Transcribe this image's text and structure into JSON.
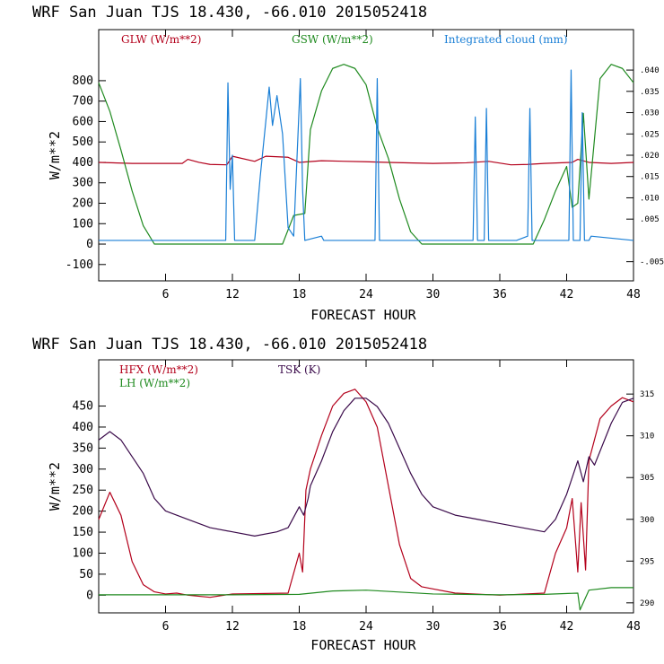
{
  "colors": {
    "glw": "#b3001b",
    "gsw": "#1f8a1f",
    "cloud": "#1a7fd6",
    "hfx": "#b3001b",
    "lh": "#1f8a1f",
    "tsk": "#3a0a4a"
  },
  "chart_data": [
    {
      "type": "line",
      "title": "WRF  San Juan TJS  18.430, -66.010  2015052418",
      "xlabel": "FORECAST HOUR",
      "ylabel": "W/m**2",
      "xlim": [
        0,
        48
      ],
      "ylim": [
        -180,
        1050
      ],
      "x_ticks": [
        12,
        18,
        24,
        30,
        36,
        42,
        48,
        6
      ],
      "y_ticks": [
        -100,
        0,
        100,
        200,
        300,
        400,
        500,
        600,
        700,
        800
      ],
      "y2_ticks": [
        -0.005,
        0.005,
        0.01,
        0.015,
        0.02,
        0.025,
        0.03,
        0.035,
        0.04
      ],
      "y2_tick_labels": [
        "-.005",
        ".005",
        ".010",
        ".015",
        ".020",
        ".025",
        ".030",
        ".035",
        ".040"
      ],
      "y2lim": [
        -0.0095,
        0.0495
      ],
      "series": [
        {
          "name": "GLW (W/m**2)",
          "color": "#b3001b",
          "axis": "left",
          "x": [
            0,
            3,
            7.5,
            8,
            9,
            10,
            11.5,
            12,
            14,
            15,
            17,
            18,
            20,
            24,
            26,
            30,
            33,
            35,
            37,
            38.5,
            40,
            42.5,
            43,
            44,
            46,
            48
          ],
          "y": [
            400,
            395,
            395,
            415,
            400,
            390,
            388,
            430,
            405,
            430,
            425,
            400,
            408,
            403,
            400,
            395,
            398,
            405,
            388,
            390,
            395,
            400,
            415,
            400,
            395,
            400
          ]
        },
        {
          "name": "GSW (W/m**2)",
          "color": "#1f8a1f",
          "axis": "left",
          "x": [
            0,
            1,
            2,
            3,
            4,
            5,
            5.5,
            16.5,
            17.5,
            18.5,
            19,
            20,
            21,
            22,
            23,
            24,
            25,
            26,
            27,
            28,
            29,
            39,
            40,
            41,
            42,
            42.5,
            43,
            43.5,
            44,
            45,
            46,
            47,
            48
          ],
          "y": [
            790,
            650,
            460,
            260,
            90,
            0,
            0,
            0,
            140,
            150,
            560,
            750,
            860,
            880,
            860,
            780,
            570,
            420,
            220,
            60,
            0,
            0,
            120,
            260,
            380,
            180,
            200,
            640,
            220,
            810,
            880,
            860,
            790
          ]
        },
        {
          "name": "Integrated cloud (mm)",
          "color": "#1a7fd6",
          "axis": "right",
          "x": [
            0,
            11.4,
            11.6,
            11.8,
            12,
            12.2,
            14,
            14.5,
            15,
            15.3,
            15.6,
            16,
            16.5,
            17,
            17.5,
            18.1,
            18.3,
            18.5,
            20,
            20.2,
            24.8,
            25,
            25.2,
            33.6,
            33.8,
            34,
            34.6,
            34.8,
            35,
            37.5,
            38.5,
            38.7,
            38.9,
            42.2,
            42.4,
            42.6,
            43.2,
            43.4,
            43.6,
            44,
            44.2,
            48
          ],
          "y": [
            0,
            0,
            0.037,
            0.012,
            0.02,
            0,
            0,
            0.015,
            0.028,
            0.036,
            0.027,
            0.034,
            0.025,
            0.003,
            0.001,
            0.038,
            0.012,
            0,
            0.001,
            0,
            0,
            0.038,
            0,
            0,
            0.029,
            0,
            0,
            0.031,
            0,
            0,
            0.001,
            0.031,
            0,
            0,
            0.04,
            0,
            0,
            0.03,
            0,
            0,
            0.001,
            0
          ]
        }
      ],
      "legend": [
        "GLW (W/m**2)",
        "GSW (W/m**2)",
        "Integrated cloud (mm)"
      ],
      "grid": false
    },
    {
      "type": "line",
      "title": "WRF  San Juan TJS  18.430, -66.010  2015052418",
      "xlabel": "FORECAST HOUR",
      "ylabel": "W/m**2",
      "xlim": [
        0,
        48
      ],
      "ylim": [
        -42,
        560
      ],
      "x_ticks": [
        6,
        12,
        18,
        24,
        30,
        36,
        42,
        48
      ],
      "y_ticks": [
        0,
        50,
        100,
        150,
        200,
        250,
        300,
        350,
        400,
        450
      ],
      "y2_ticks": [
        290,
        295,
        300,
        305,
        310,
        315
      ],
      "y2lim": [
        288.8,
        319.1
      ],
      "series": [
        {
          "name": "HFX (W/m**2)",
          "color": "#b3001b",
          "axis": "left",
          "x": [
            0,
            1,
            2,
            3,
            4,
            5,
            6,
            7,
            8,
            10,
            12,
            17,
            18,
            18.3,
            18.6,
            19,
            20,
            21,
            22,
            23,
            24,
            25,
            26,
            27,
            28,
            29,
            30,
            32,
            36,
            40,
            41,
            42,
            42.5,
            43,
            43.3,
            43.7,
            44,
            45,
            46,
            47,
            48
          ],
          "y": [
            180,
            245,
            190,
            80,
            25,
            8,
            3,
            5,
            0,
            -5,
            3,
            5,
            100,
            55,
            250,
            300,
            380,
            450,
            480,
            490,
            460,
            400,
            260,
            120,
            40,
            20,
            15,
            5,
            0,
            5,
            100,
            160,
            230,
            55,
            220,
            60,
            320,
            420,
            450,
            470,
            460
          ]
        },
        {
          "name": "LH (W/m**2)",
          "color": "#1f8a1f",
          "axis": "left",
          "x": [
            0,
            12,
            18,
            21,
            24,
            30,
            36,
            40,
            43,
            43.2,
            44,
            46,
            48
          ],
          "y": [
            1,
            1,
            2,
            10,
            12,
            3,
            1,
            2,
            5,
            -35,
            12,
            18,
            18
          ]
        },
        {
          "name": "TSK (K)",
          "color": "#3a0a4a",
          "axis": "right",
          "x": [
            0,
            1,
            2,
            3,
            4,
            5,
            6,
            8,
            10,
            12,
            14,
            16,
            17,
            18,
            18.4,
            18.8,
            19,
            20,
            21,
            22,
            23,
            24,
            25,
            26,
            27,
            28,
            29,
            30,
            32,
            34,
            36,
            38,
            40,
            41,
            42,
            43,
            43.5,
            44,
            44.5,
            46,
            47,
            48
          ],
          "y": [
            309.5,
            310.5,
            309.5,
            307.5,
            305.5,
            302.5,
            301.0,
            300.0,
            299.0,
            298.5,
            298.0,
            298.5,
            299.0,
            301.5,
            300.5,
            302.5,
            304.0,
            307.0,
            310.5,
            313.0,
            314.5,
            314.5,
            313.5,
            311.5,
            308.5,
            305.5,
            303.0,
            301.5,
            300.5,
            300.0,
            299.5,
            299.0,
            298.5,
            300.0,
            303.0,
            307.0,
            304.5,
            307.5,
            306.5,
            311.5,
            314.0,
            314.5
          ]
        }
      ],
      "legend": [
        "HFX (W/m**2)",
        "TSK (K)",
        "LH (W/m**2)"
      ],
      "grid": false
    }
  ]
}
